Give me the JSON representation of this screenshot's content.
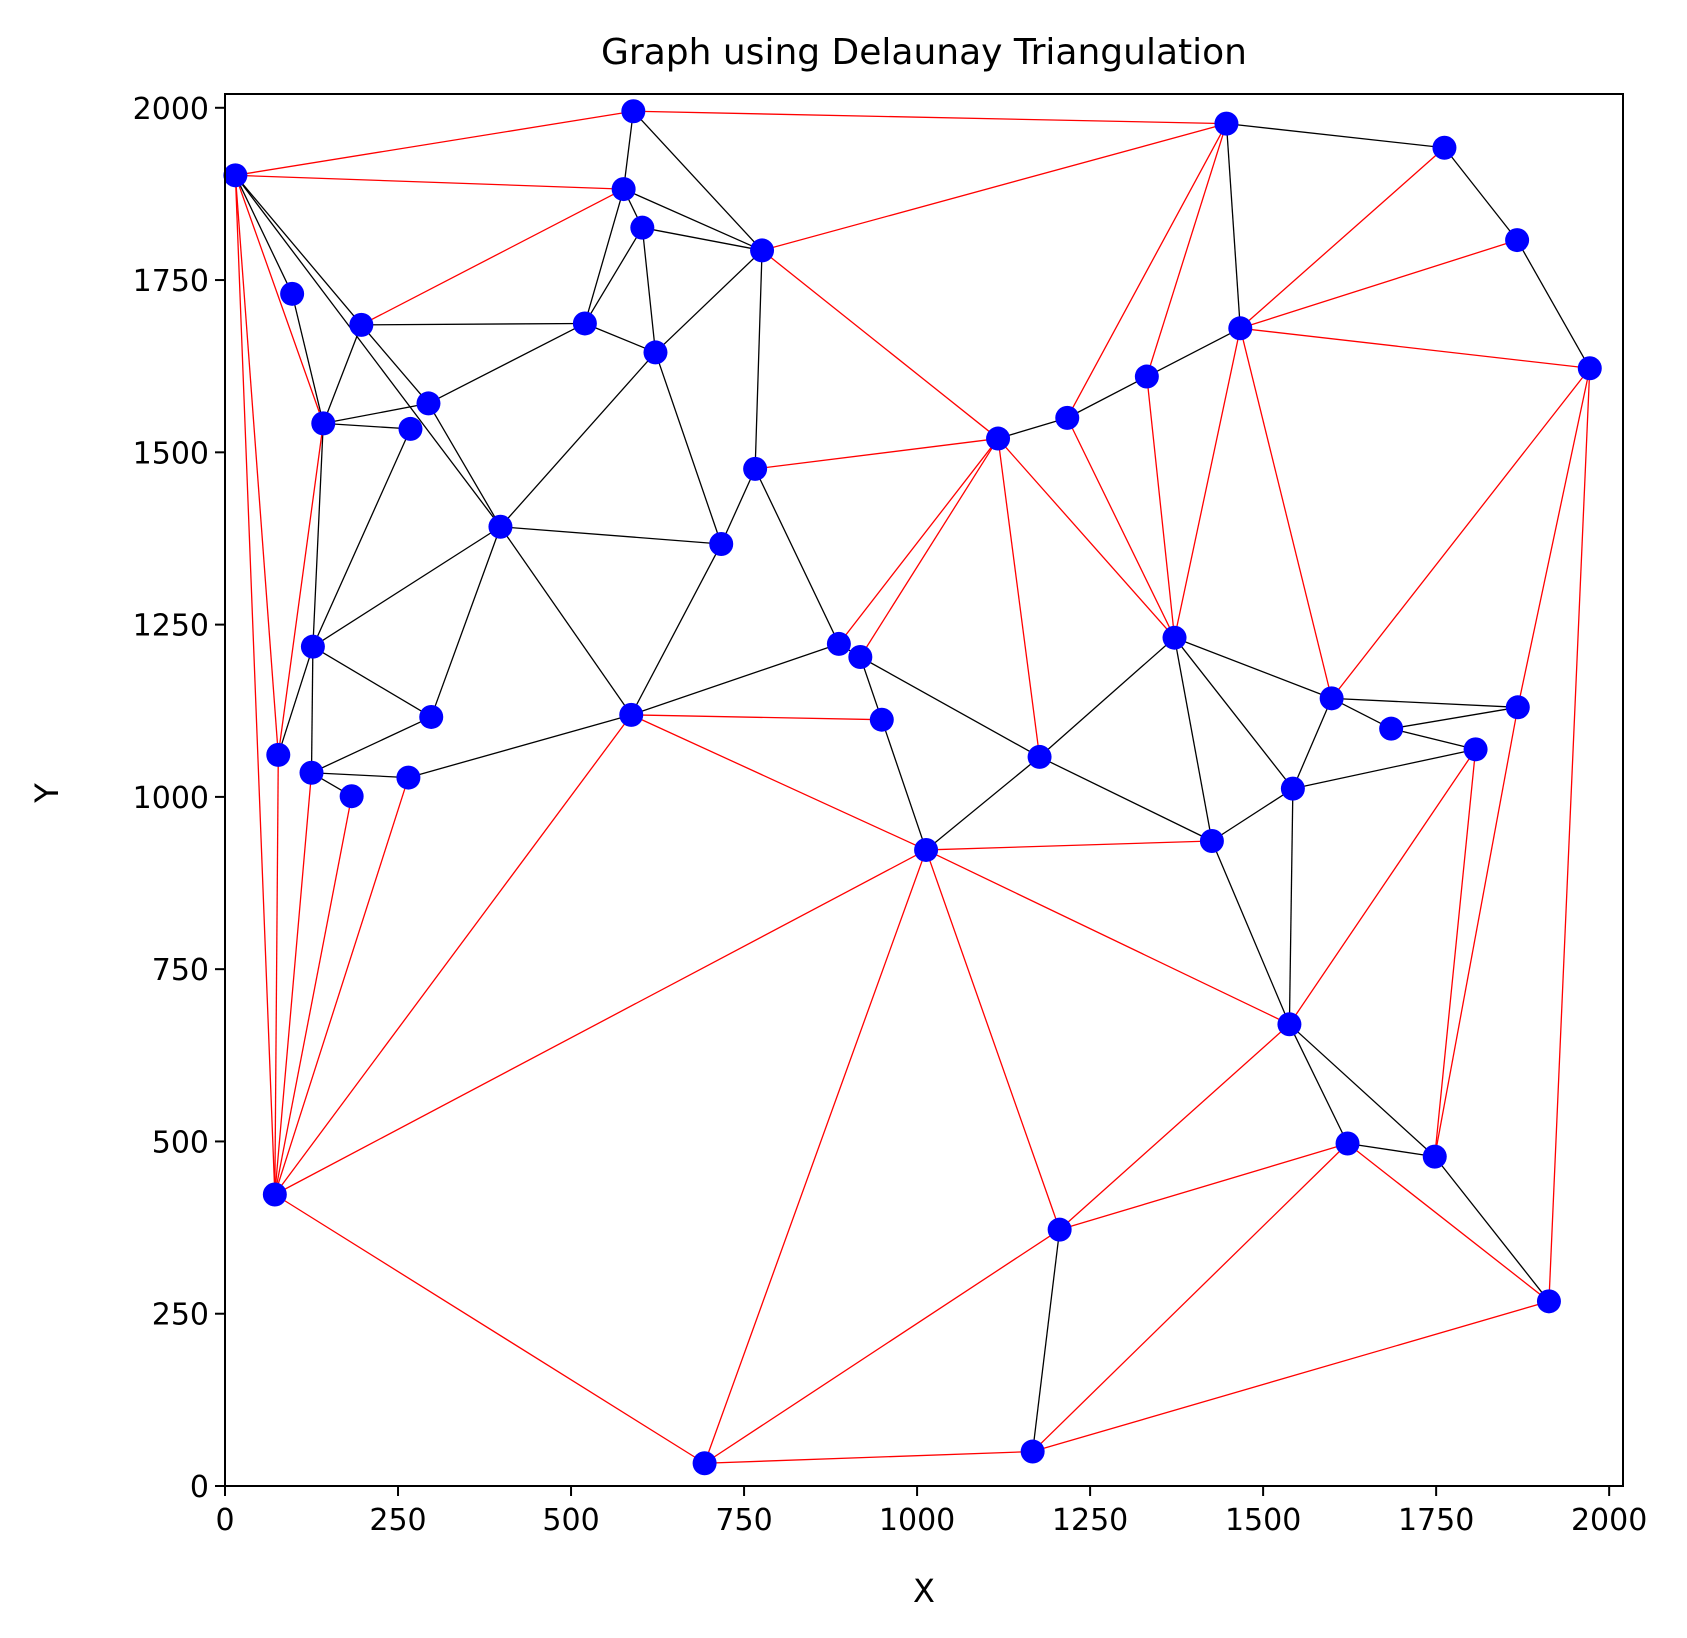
{
  "chart_data": {
    "type": "scatter",
    "title": "Graph using Delaunay Triangulation",
    "xlabel": "X",
    "ylabel": "Y",
    "xlim": [
      0,
      2020
    ],
    "ylim": [
      0,
      2020
    ],
    "xticks": [
      0,
      250,
      500,
      750,
      1000,
      1250,
      1500,
      1750,
      2000
    ],
    "yticks": [
      0,
      250,
      500,
      750,
      1000,
      1250,
      1500,
      1750,
      2000
    ],
    "grid": false,
    "colors": {
      "points": "#0000ff",
      "edges_black": "#000000",
      "edges_red": "#ff0000"
    },
    "points": [
      [
        15,
        1902
      ],
      [
        590,
        1995
      ],
      [
        1447,
        1977
      ],
      [
        1762,
        1942
      ],
      [
        1867,
        1808
      ],
      [
        1972,
        1622
      ],
      [
        97,
        1730
      ],
      [
        197,
        1685
      ],
      [
        520,
        1687
      ],
      [
        576,
        1882
      ],
      [
        603,
        1826
      ],
      [
        776,
        1793
      ],
      [
        1467,
        1680
      ],
      [
        1332,
        1610
      ],
      [
        1217,
        1550
      ],
      [
        1117,
        1520
      ],
      [
        622,
        1645
      ],
      [
        766,
        1476
      ],
      [
        294,
        1571
      ],
      [
        142,
        1542
      ],
      [
        268,
        1534
      ],
      [
        398,
        1392
      ],
      [
        717,
        1367
      ],
      [
        1372,
        1231
      ],
      [
        887,
        1222
      ],
      [
        918,
        1203
      ],
      [
        127,
        1218
      ],
      [
        298,
        1116
      ],
      [
        587,
        1119
      ],
      [
        949,
        1112
      ],
      [
        1177,
        1058
      ],
      [
        1599,
        1143
      ],
      [
        1685,
        1099
      ],
      [
        1807,
        1069
      ],
      [
        1868,
        1130
      ],
      [
        1543,
        1012
      ],
      [
        77,
        1061
      ],
      [
        125,
        1035
      ],
      [
        183,
        1001
      ],
      [
        265,
        1028
      ],
      [
        1013,
        923
      ],
      [
        1426,
        936
      ],
      [
        1538,
        670
      ],
      [
        1622,
        497
      ],
      [
        1748,
        478
      ],
      [
        1913,
        268
      ],
      [
        72,
        423
      ],
      [
        1206,
        372
      ],
      [
        1167,
        50
      ],
      [
        693,
        33
      ]
    ],
    "edges_black": [
      [
        0,
        6
      ],
      [
        0,
        7
      ],
      [
        0,
        21
      ],
      [
        6,
        19
      ],
      [
        7,
        19
      ],
      [
        7,
        8
      ],
      [
        1,
        9
      ],
      [
        1,
        11
      ],
      [
        9,
        8
      ],
      [
        9,
        10
      ],
      [
        9,
        11
      ],
      [
        10,
        8
      ],
      [
        10,
        16
      ],
      [
        10,
        11
      ],
      [
        11,
        16
      ],
      [
        11,
        17
      ],
      [
        16,
        8
      ],
      [
        16,
        21
      ],
      [
        16,
        22
      ],
      [
        17,
        22
      ],
      [
        17,
        24
      ],
      [
        2,
        3
      ],
      [
        3,
        4
      ],
      [
        4,
        5
      ],
      [
        2,
        12
      ],
      [
        12,
        13
      ],
      [
        13,
        14
      ],
      [
        14,
        15
      ],
      [
        19,
        18
      ],
      [
        19,
        20
      ],
      [
        19,
        26
      ],
      [
        20,
        26
      ],
      [
        18,
        8
      ],
      [
        18,
        21
      ],
      [
        18,
        7
      ],
      [
        21,
        26
      ],
      [
        21,
        27
      ],
      [
        21,
        22
      ],
      [
        21,
        28
      ],
      [
        22,
        28
      ],
      [
        24,
        25
      ],
      [
        25,
        29
      ],
      [
        25,
        30
      ],
      [
        28,
        24
      ],
      [
        26,
        36
      ],
      [
        26,
        37
      ],
      [
        26,
        27
      ],
      [
        27,
        37
      ],
      [
        37,
        38
      ],
      [
        37,
        39
      ],
      [
        39,
        28
      ],
      [
        29,
        40
      ],
      [
        30,
        40
      ],
      [
        30,
        41
      ],
      [
        30,
        23
      ],
      [
        23,
        31
      ],
      [
        23,
        35
      ],
      [
        23,
        41
      ],
      [
        31,
        32
      ],
      [
        31,
        34
      ],
      [
        31,
        35
      ],
      [
        32,
        34
      ],
      [
        32,
        33
      ],
      [
        33,
        35
      ],
      [
        41,
        35
      ],
      [
        41,
        42
      ],
      [
        35,
        42
      ],
      [
        42,
        43
      ],
      [
        42,
        44
      ],
      [
        43,
        44
      ],
      [
        44,
        45
      ],
      [
        47,
        48
      ]
    ],
    "edges_red": [
      [
        0,
        1
      ],
      [
        0,
        9
      ],
      [
        0,
        46
      ],
      [
        0,
        36
      ],
      [
        0,
        19
      ],
      [
        1,
        2
      ],
      [
        2,
        11
      ],
      [
        2,
        14
      ],
      [
        2,
        13
      ],
      [
        9,
        7
      ],
      [
        3,
        12
      ],
      [
        4,
        12
      ],
      [
        12,
        5
      ],
      [
        12,
        23
      ],
      [
        12,
        31
      ],
      [
        11,
        15
      ],
      [
        17,
        15
      ],
      [
        15,
        24
      ],
      [
        15,
        25
      ],
      [
        15,
        30
      ],
      [
        15,
        23
      ],
      [
        14,
        23
      ],
      [
        13,
        23
      ],
      [
        5,
        31
      ],
      [
        5,
        34
      ],
      [
        5,
        45
      ],
      [
        34,
        44
      ],
      [
        33,
        44
      ],
      [
        33,
        42
      ],
      [
        19,
        36
      ],
      [
        36,
        46
      ],
      [
        37,
        46
      ],
      [
        38,
        46
      ],
      [
        39,
        46
      ],
      [
        28,
        46
      ],
      [
        28,
        29
      ],
      [
        28,
        40
      ],
      [
        40,
        46
      ],
      [
        40,
        41
      ],
      [
        40,
        42
      ],
      [
        40,
        47
      ],
      [
        40,
        49
      ],
      [
        46,
        49
      ],
      [
        49,
        48
      ],
      [
        49,
        47
      ],
      [
        47,
        43
      ],
      [
        47,
        42
      ],
      [
        48,
        43
      ],
      [
        48,
        45
      ],
      [
        43,
        45
      ]
    ]
  }
}
